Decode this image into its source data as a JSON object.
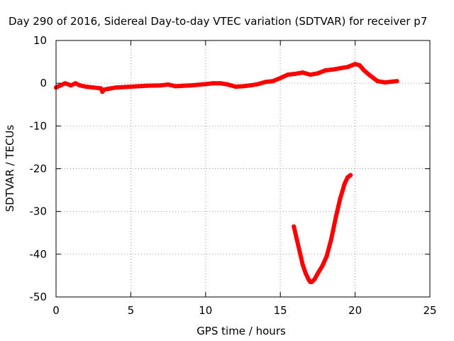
{
  "chart_data": {
    "type": "line",
    "title": "Day 290 of 2016, Sidereal Day-to-day VTEC variation (SDTVAR) for receiver p7",
    "xlabel": "GPS time / hours",
    "ylabel": "SDTVAR / TECUs",
    "xlim": [
      0,
      25
    ],
    "ylim": [
      -50,
      10
    ],
    "x_ticks": [
      0,
      5,
      10,
      15,
      20,
      25
    ],
    "y_ticks": [
      -50,
      -40,
      -30,
      -20,
      -10,
      0,
      10
    ],
    "x_tick_labels": [
      "0",
      "5",
      "10",
      "15",
      "20",
      "25"
    ],
    "y_tick_labels": [
      "-50",
      "-40",
      "-30",
      "-20",
      "-10",
      "0",
      "10"
    ],
    "grid": true,
    "legend": "none",
    "color": "#ff0000",
    "series": [
      {
        "x": [
          0.0,
          0.3,
          0.6,
          1.0,
          1.3,
          1.6,
          2.0,
          2.5,
          3.0,
          3.1,
          3.2,
          3.5,
          4.0,
          5.0,
          6.0,
          7.0,
          7.5,
          8.0,
          8.5,
          9.0,
          10.0,
          10.5,
          11.0,
          11.5,
          12.0,
          12.5,
          13.0,
          13.5,
          14.0,
          14.5,
          15.0,
          15.5,
          16.0,
          16.5,
          17.0,
          17.5,
          18.0,
          18.5,
          19.0,
          19.5,
          20.0,
          20.3,
          20.6,
          21.0,
          21.5,
          22.0,
          22.5,
          22.8
        ],
        "y": [
          -1.0,
          -0.5,
          0.0,
          -0.5,
          0.0,
          -0.5,
          -0.8,
          -1.0,
          -1.2,
          -2.0,
          -1.5,
          -1.3,
          -1.0,
          -0.8,
          -0.6,
          -0.5,
          -0.3,
          -0.7,
          -0.6,
          -0.5,
          -0.2,
          0.0,
          0.0,
          -0.3,
          -0.8,
          -0.7,
          -0.5,
          -0.2,
          0.3,
          0.5,
          1.2,
          2.0,
          2.2,
          2.5,
          2.0,
          2.3,
          3.0,
          3.2,
          3.5,
          3.8,
          4.5,
          4.2,
          3.0,
          1.8,
          0.5,
          0.2,
          0.4,
          0.5
        ]
      },
      {
        "x": [
          15.9,
          16.1,
          16.3,
          16.5,
          16.7,
          16.9,
          17.0,
          17.1,
          17.3,
          17.5,
          17.8,
          18.1,
          18.4,
          18.7,
          19.0,
          19.3,
          19.5,
          19.7
        ],
        "y": [
          -33.5,
          -36.5,
          -39.5,
          -42.5,
          -44.5,
          -46.0,
          -46.5,
          -46.5,
          -45.8,
          -44.5,
          -42.8,
          -40.5,
          -36.5,
          -31.5,
          -27.0,
          -23.5,
          -22.0,
          -21.5
        ]
      }
    ]
  }
}
